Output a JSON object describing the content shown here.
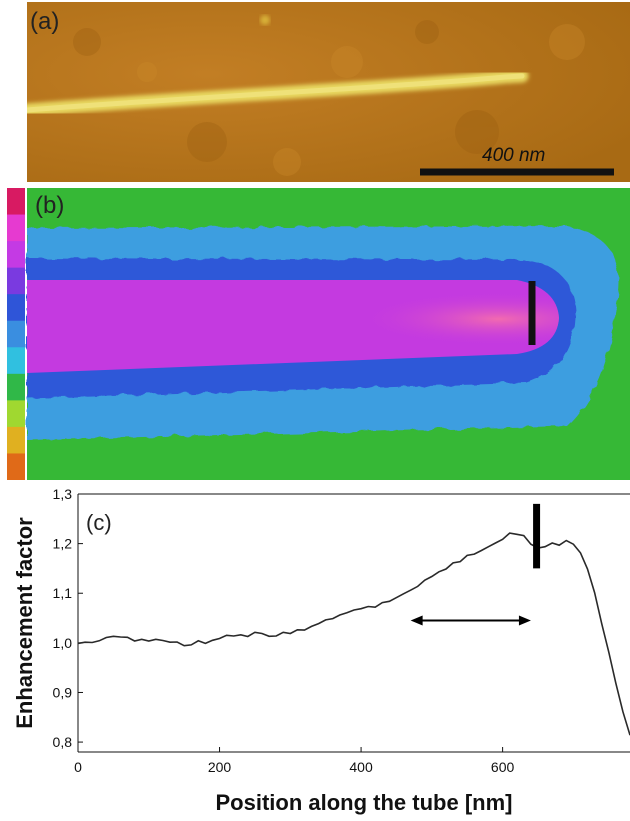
{
  "panel_a": {
    "label": "(a)",
    "scale_bar_label": "400 nm",
    "colors": {
      "background": "#b8781c",
      "tube": "#e8d860",
      "scale_bar": "#111111"
    }
  },
  "panel_b": {
    "label": "(b)",
    "colorbar": [
      "#d81a62",
      "#e63ad0",
      "#c43ae4",
      "#7a3ae0",
      "#2f55d8",
      "#3a8ee0",
      "#30c0e0",
      "#30b848",
      "#a0d830",
      "#e0b020",
      "#e06a18"
    ],
    "colors": {
      "outer": "#36b836",
      "ring1": "#3e9ee0",
      "ring2": "#2f58d8",
      "core": "#c43ae0",
      "hot": "#ec5ab8",
      "marker": "#111111"
    }
  },
  "panel_c": {
    "label": "(c)"
  },
  "chart_data": {
    "type": "line",
    "xlabel": "Position along the tube [nm]",
    "ylabel": "Enhancement factor",
    "xlim": [
      0,
      780
    ],
    "ylim": [
      0.78,
      1.3
    ],
    "xticks": [
      "0",
      "200",
      "400",
      "600"
    ],
    "xtick_values": [
      0,
      200,
      400,
      600
    ],
    "yticks": [
      "0,8",
      "0,9",
      "1,0",
      "1,1",
      "1,2",
      "1,3"
    ],
    "ytick_values": [
      0.8,
      0.9,
      1.0,
      1.1,
      1.2,
      1.3
    ],
    "marker_x": 648,
    "arrow_range": [
      470,
      640
    ],
    "x": [
      0,
      10,
      20,
      30,
      40,
      50,
      60,
      70,
      80,
      90,
      100,
      110,
      120,
      130,
      140,
      150,
      160,
      170,
      180,
      190,
      200,
      210,
      220,
      230,
      240,
      250,
      260,
      270,
      280,
      290,
      300,
      310,
      320,
      330,
      340,
      350,
      360,
      370,
      380,
      390,
      400,
      410,
      420,
      430,
      440,
      450,
      460,
      470,
      480,
      490,
      500,
      510,
      520,
      530,
      540,
      550,
      560,
      570,
      580,
      590,
      600,
      610,
      620,
      630,
      640,
      650,
      660,
      670,
      680,
      690,
      700,
      710,
      720,
      730,
      740,
      750,
      760,
      770,
      780
    ],
    "y": [
      1.0,
      1.0,
      1.002,
      1.003,
      1.012,
      1.012,
      1.013,
      1.01,
      1.005,
      1.006,
      1.005,
      1.006,
      1.006,
      1.0,
      1.003,
      0.993,
      0.997,
      1.003,
      1.0,
      1.004,
      1.01,
      1.014,
      1.015,
      1.015,
      1.014,
      1.02,
      1.02,
      1.012,
      1.015,
      1.02,
      1.02,
      1.025,
      1.027,
      1.032,
      1.04,
      1.045,
      1.05,
      1.055,
      1.062,
      1.065,
      1.07,
      1.072,
      1.073,
      1.08,
      1.085,
      1.09,
      1.1,
      1.105,
      1.115,
      1.125,
      1.135,
      1.142,
      1.15,
      1.16,
      1.165,
      1.175,
      1.18,
      1.185,
      1.195,
      1.2,
      1.21,
      1.22,
      1.22,
      1.215,
      1.2,
      1.19,
      1.195,
      1.2,
      1.198,
      1.205,
      1.2,
      1.18,
      1.15,
      1.1,
      1.04,
      0.98,
      0.92,
      0.86,
      0.815
    ]
  }
}
